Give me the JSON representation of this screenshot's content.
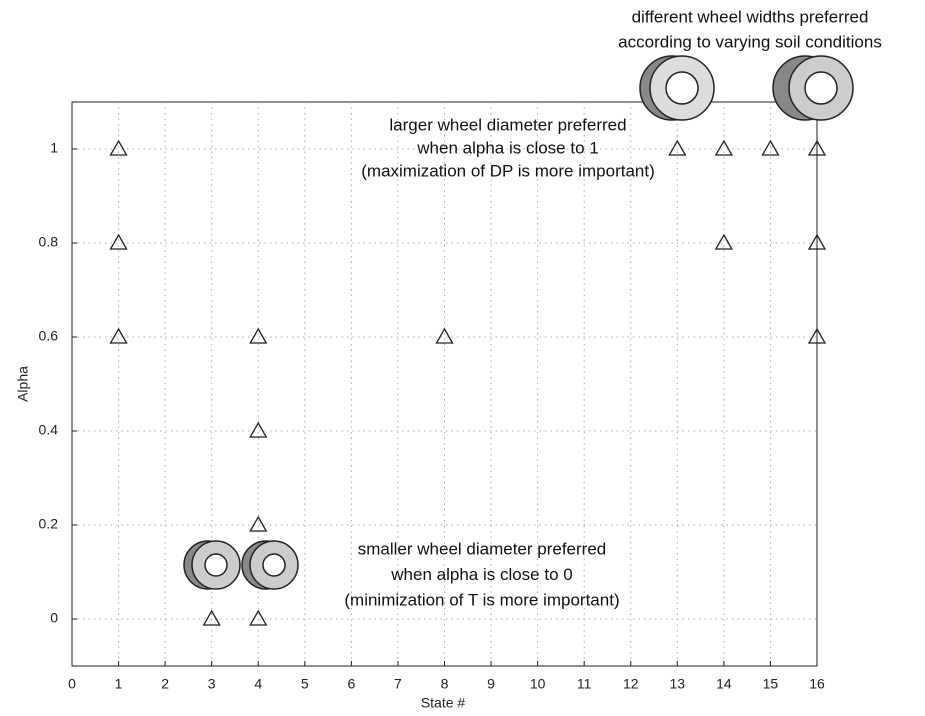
{
  "chart_data": {
    "type": "scatter",
    "xlabel": "State #",
    "ylabel": "Alpha",
    "x": [
      1,
      1,
      1,
      3,
      4,
      4,
      4,
      4,
      8,
      13,
      14,
      14,
      15,
      16,
      16,
      16
    ],
    "values": [
      1,
      0.8,
      0.6,
      0,
      0,
      0.2,
      0.4,
      0.6,
      0.6,
      1,
      1,
      0.8,
      1,
      1,
      0.8,
      0.6
    ],
    "color": "#222222",
    "marker": "triangle",
    "xlim": [
      0,
      16
    ],
    "ylim": [
      -0.1,
      1.1
    ],
    "xticks": [
      0,
      1,
      2,
      3,
      4,
      5,
      6,
      7,
      8,
      9,
      10,
      11,
      12,
      13,
      14,
      15,
      16
    ],
    "yticks": [
      0,
      0.2,
      0.4,
      0.6,
      0.8,
      1
    ],
    "grid": true,
    "annotations": [
      [
        "different wheel widths preferred",
        "according to varying soil conditions"
      ],
      [
        "larger wheel diameter preferred",
        "when alpha is close to 1",
        "(maximization of DP is more important)"
      ],
      [
        "smaller wheel diameter preferred",
        "when alpha is close to 0",
        "(minimization of T is more important)"
      ]
    ]
  }
}
